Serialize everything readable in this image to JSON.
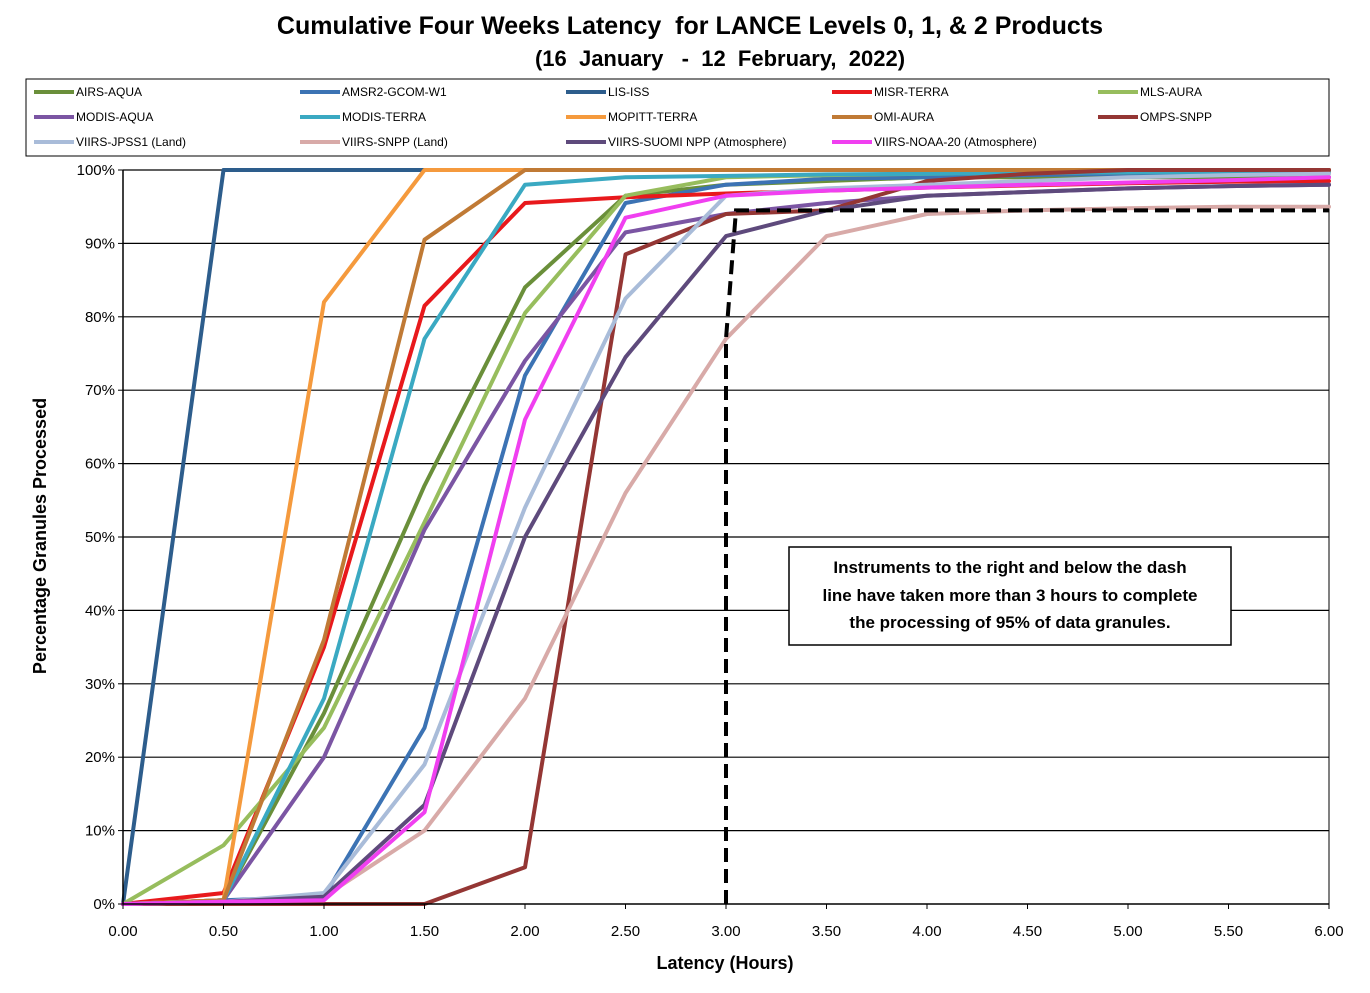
{
  "chart_data": {
    "type": "line",
    "title": "Cumulative Four Weeks Latency  for LANCE Levels 0, 1, & 2 Products",
    "subtitle": "(16  January   -  12  February,  2022)",
    "xlabel": "Latency (Hours)",
    "ylabel": "Percentage Granules Processed",
    "xlim": [
      0,
      6
    ],
    "ylim": [
      0,
      100
    ],
    "x": [
      0,
      0.5,
      1.0,
      1.5,
      2.0,
      2.5,
      3.0,
      3.5,
      4.0,
      4.5,
      5.0,
      5.5,
      6.0
    ],
    "x_tick_labels": [
      "0.00",
      "0.50",
      "1.00",
      "1.50",
      "2.00",
      "2.50",
      "3.00",
      "3.50",
      "4.00",
      "4.50",
      "5.00",
      "5.50",
      "6.00"
    ],
    "y_tick_labels": [
      "0%",
      "10%",
      "20%",
      "30%",
      "40%",
      "50%",
      "60%",
      "70%",
      "80%",
      "90%",
      "100%"
    ],
    "y_ticks": [
      0,
      10,
      20,
      30,
      40,
      50,
      60,
      70,
      80,
      90,
      100
    ],
    "grid": "horizontal",
    "legend_position": "top",
    "series": [
      {
        "name": "AIRS-AQUA",
        "color": "#6a8f3a",
        "values": [
          0,
          0.5,
          26,
          57,
          84,
          96.5,
          98,
          98.5,
          99,
          99,
          99,
          99,
          99
        ]
      },
      {
        "name": "AMSR2-GCOM-W1",
        "color": "#3c73b4",
        "values": [
          0,
          0.5,
          1,
          24,
          72,
          95.5,
          98,
          98.8,
          99,
          99.3,
          99.5,
          99.6,
          99.7
        ]
      },
      {
        "name": "LIS-ISS",
        "color": "#2d5d8c",
        "values": [
          0,
          100,
          100,
          100,
          100,
          100,
          100,
          100,
          100,
          100,
          100,
          100,
          100
        ]
      },
      {
        "name": "MISR-TERRA",
        "color": "#e8191c",
        "values": [
          0,
          1.5,
          35,
          81.5,
          95.5,
          96.3,
          96.8,
          97.2,
          97.6,
          97.9,
          98.2,
          98.4,
          98.5
        ]
      },
      {
        "name": "MLS-AURA",
        "color": "#97bd5d",
        "values": [
          0,
          8,
          24,
          52,
          80.5,
          96.5,
          99,
          99.3,
          99.5,
          99.6,
          99.7,
          99.8,
          99.8
        ]
      },
      {
        "name": "MODIS-AQUA",
        "color": "#7b55a3",
        "values": [
          0,
          0.5,
          20,
          51,
          74,
          91.5,
          94,
          95.5,
          96.5,
          97,
          97.5,
          97.8,
          98
        ]
      },
      {
        "name": "MODIS-TERRA",
        "color": "#3aa9c2",
        "values": [
          0,
          0.5,
          28,
          77,
          98,
          99,
          99.2,
          99.4,
          99.5,
          99.6,
          99.7,
          99.7,
          99.8
        ]
      },
      {
        "name": "MOPITT-TERRA",
        "color": "#f59a3d",
        "values": [
          0,
          0.5,
          82,
          100,
          100,
          100,
          100,
          100,
          100,
          100,
          100,
          100,
          100
        ]
      },
      {
        "name": "OMI-AURA",
        "color": "#c07a35",
        "values": [
          0,
          0.5,
          36,
          90.5,
          100,
          100,
          100,
          100,
          100,
          100,
          100,
          100,
          100
        ]
      },
      {
        "name": "OMPS-SNPP",
        "color": "#943634",
        "values": [
          0,
          0,
          0,
          0,
          5,
          88.5,
          94,
          94.5,
          98.5,
          99.5,
          100,
          100,
          100
        ]
      },
      {
        "name": "VIIRS-JPSS1 (Land)",
        "color": "#a9bcd9",
        "values": [
          0,
          0.3,
          1.5,
          19,
          54,
          82.5,
          96.5,
          97.5,
          98,
          98.5,
          99,
          99.3,
          99.5
        ]
      },
      {
        "name": "VIIRS-SNPP (Land)",
        "color": "#d8aaa8",
        "values": [
          0,
          0.3,
          1,
          10,
          28,
          56,
          77,
          91,
          94,
          94.5,
          94.8,
          95,
          95
        ]
      },
      {
        "name": "VIIRS-SUOMI NPP (Atmosphere)",
        "color": "#5e4a7c",
        "values": [
          0,
          0.3,
          1,
          13.5,
          50,
          74.5,
          91,
          94.5,
          96.5,
          97,
          97.5,
          97.8,
          98
        ]
      },
      {
        "name": "VIIRS-NOAA-20 (Atmosphere)",
        "color": "#f03ff0",
        "values": [
          0,
          0.3,
          0.5,
          12.5,
          66,
          93.5,
          96.5,
          97.2,
          97.6,
          98,
          98.3,
          98.6,
          99
        ]
      }
    ],
    "reference_line": {
      "style": "dashed",
      "color": "#000000",
      "x": [
        3.0,
        3.0,
        3.05,
        6.0
      ],
      "y": [
        0,
        77,
        94.5,
        94.5
      ]
    },
    "annotation": {
      "lines": [
        "Instruments to the right and below the dash",
        "line have taken more than 3 hours to complete",
        "the processing of 95% of data granules."
      ]
    }
  }
}
